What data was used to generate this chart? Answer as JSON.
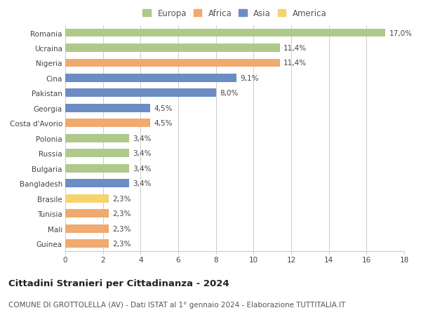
{
  "countries": [
    "Romania",
    "Ucraina",
    "Nigeria",
    "Cina",
    "Pakistan",
    "Georgia",
    "Costa d'Avorio",
    "Polonia",
    "Russia",
    "Bulgaria",
    "Bangladesh",
    "Brasile",
    "Tunisia",
    "Mali",
    "Guinea"
  ],
  "values": [
    17.0,
    11.4,
    11.4,
    9.1,
    8.0,
    4.5,
    4.5,
    3.4,
    3.4,
    3.4,
    3.4,
    2.3,
    2.3,
    2.3,
    2.3
  ],
  "labels": [
    "17,0%",
    "11,4%",
    "11,4%",
    "9,1%",
    "8,0%",
    "4,5%",
    "4,5%",
    "3,4%",
    "3,4%",
    "3,4%",
    "3,4%",
    "2,3%",
    "2,3%",
    "2,3%",
    "2,3%"
  ],
  "continents": [
    "Europa",
    "Europa",
    "Africa",
    "Asia",
    "Asia",
    "Asia",
    "Africa",
    "Europa",
    "Europa",
    "Europa",
    "Asia",
    "America",
    "Africa",
    "Africa",
    "Africa"
  ],
  "colors": {
    "Europa": "#aec98a",
    "Africa": "#f0a96e",
    "Asia": "#6b8dc4",
    "America": "#f5d46e"
  },
  "legend_order": [
    "Europa",
    "Africa",
    "Asia",
    "America"
  ],
  "xlim": [
    0,
    18
  ],
  "xticks": [
    0,
    2,
    4,
    6,
    8,
    10,
    12,
    14,
    16,
    18
  ],
  "title": "Cittadini Stranieri per Cittadinanza - 2024",
  "subtitle": "COMUNE DI GROTTOLELLA (AV) - Dati ISTAT al 1° gennaio 2024 - Elaborazione TUTTITALIA.IT",
  "bg_color": "#ffffff",
  "grid_color": "#cccccc",
  "bar_height": 0.55,
  "title_fontsize": 9.5,
  "subtitle_fontsize": 7.5,
  "label_fontsize": 7.5,
  "tick_fontsize": 7.5,
  "legend_fontsize": 8.5
}
